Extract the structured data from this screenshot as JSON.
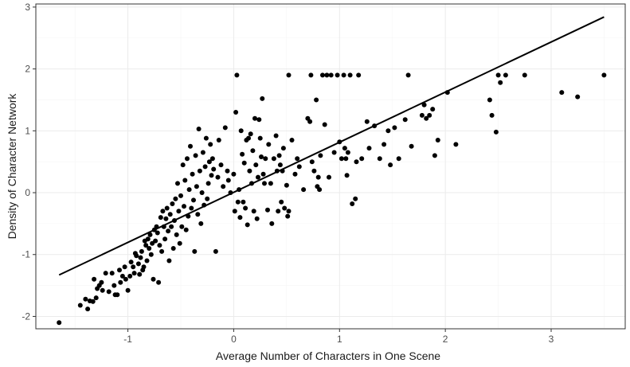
{
  "chart_data": {
    "type": "scatter",
    "title": "",
    "xlabel": "Average Number of Characters in One Scene",
    "ylabel": "Density of Character Network",
    "xlim": [
      -1.87,
      3.7
    ],
    "ylim": [
      -2.2,
      3.05
    ],
    "x_ticks": [
      -1,
      0,
      1,
      2,
      3
    ],
    "y_ticks": [
      -2,
      -1,
      0,
      1,
      2,
      3
    ],
    "grid": true,
    "legend": "none",
    "fit_line": {
      "x": [
        -1.65,
        3.5
      ],
      "y": [
        -1.33,
        2.84
      ]
    },
    "points": [
      [
        -1.65,
        -2.1
      ],
      [
        -1.45,
        -1.82
      ],
      [
        -1.4,
        -1.72
      ],
      [
        -1.38,
        -1.88
      ],
      [
        -1.36,
        -1.75
      ],
      [
        -1.33,
        -1.76
      ],
      [
        -1.32,
        -1.4
      ],
      [
        -1.3,
        -1.7
      ],
      [
        -1.29,
        -1.55
      ],
      [
        -1.27,
        -1.5
      ],
      [
        -1.25,
        -1.45
      ],
      [
        -1.24,
        -1.58
      ],
      [
        -1.21,
        -1.3
      ],
      [
        -1.18,
        -1.6
      ],
      [
        -1.15,
        -1.3
      ],
      [
        -1.13,
        -1.5
      ],
      [
        -1.12,
        -1.65
      ],
      [
        -1.1,
        -1.65
      ],
      [
        -1.08,
        -1.25
      ],
      [
        -1.07,
        -1.45
      ],
      [
        -1.05,
        -1.35
      ],
      [
        -1.03,
        -1.2
      ],
      [
        -1.02,
        -1.4
      ],
      [
        -1.0,
        -1.58
      ],
      [
        -0.98,
        -1.35
      ],
      [
        -0.97,
        -1.12
      ],
      [
        -0.95,
        -1.2
      ],
      [
        -0.94,
        -1.3
      ],
      [
        -0.93,
        -0.98
      ],
      [
        -0.92,
        -1.02
      ],
      [
        -0.9,
        -1.15
      ],
      [
        -0.89,
        -1.32
      ],
      [
        -0.88,
        -1.05
      ],
      [
        -0.87,
        -0.95
      ],
      [
        -0.86,
        -1.25
      ],
      [
        -0.85,
        -1.2
      ],
      [
        -0.84,
        -0.78
      ],
      [
        -0.83,
        -0.85
      ],
      [
        -0.82,
        -1.1
      ],
      [
        -0.81,
        -0.75
      ],
      [
        -0.8,
        -0.9
      ],
      [
        -0.79,
        -0.68
      ],
      [
        -0.78,
        -1.0
      ],
      [
        -0.77,
        -0.82
      ],
      [
        -0.76,
        -1.4
      ],
      [
        -0.75,
        -0.6
      ],
      [
        -0.74,
        -0.78
      ],
      [
        -0.73,
        -0.55
      ],
      [
        -0.72,
        -0.65
      ],
      [
        -0.71,
        -1.45
      ],
      [
        -0.7,
        -0.85
      ],
      [
        -0.69,
        -0.4
      ],
      [
        -0.68,
        -0.95
      ],
      [
        -0.67,
        -0.3
      ],
      [
        -0.66,
        -0.55
      ],
      [
        -0.65,
        -0.75
      ],
      [
        -0.64,
        -0.42
      ],
      [
        -0.63,
        -0.25
      ],
      [
        -0.62,
        -0.62
      ],
      [
        -0.61,
        -1.1
      ],
      [
        -0.6,
        -0.35
      ],
      [
        -0.59,
        -0.55
      ],
      [
        -0.58,
        -0.18
      ],
      [
        -0.57,
        -0.9
      ],
      [
        -0.56,
        -0.45
      ],
      [
        -0.55,
        -0.1
      ],
      [
        -0.54,
        -0.68
      ],
      [
        -0.53,
        0.15
      ],
      [
        -0.52,
        -0.3
      ],
      [
        -0.51,
        -0.82
      ],
      [
        -0.5,
        -0.05
      ],
      [
        -0.49,
        -0.55
      ],
      [
        -0.48,
        0.45
      ],
      [
        -0.47,
        -0.22
      ],
      [
        -0.46,
        0.2
      ],
      [
        -0.45,
        -0.6
      ],
      [
        -0.44,
        0.55
      ],
      [
        -0.43,
        -0.38
      ],
      [
        -0.42,
        0.05
      ],
      [
        -0.41,
        0.75
      ],
      [
        -0.4,
        -0.25
      ],
      [
        -0.39,
        0.3
      ],
      [
        -0.38,
        -0.12
      ],
      [
        -0.37,
        -0.95
      ],
      [
        -0.36,
        0.6
      ],
      [
        -0.35,
        0.1
      ],
      [
        -0.34,
        -0.35
      ],
      [
        -0.33,
        1.03
      ],
      [
        -0.32,
        0.35
      ],
      [
        -0.31,
        -0.5
      ],
      [
        -0.3,
        0.0
      ],
      [
        -0.29,
        0.65
      ],
      [
        -0.28,
        -0.2
      ],
      [
        -0.27,
        0.42
      ],
      [
        -0.26,
        0.88
      ],
      [
        -0.25,
        -0.1
      ],
      [
        -0.24,
        0.15
      ],
      [
        -0.23,
        0.5
      ],
      [
        -0.22,
        0.78
      ],
      [
        -0.21,
        0.28
      ],
      [
        -0.2,
        0.55
      ],
      [
        -0.19,
        0.38
      ],
      [
        -0.17,
        -0.95
      ],
      [
        -0.15,
        0.25
      ],
      [
        -0.14,
        0.85
      ],
      [
        -0.12,
        0.45
      ],
      [
        -0.1,
        0.1
      ],
      [
        -0.08,
        1.05
      ],
      [
        -0.06,
        0.35
      ],
      [
        -0.05,
        0.2
      ],
      [
        -0.03,
        0.0
      ],
      [
        0.0,
        0.3
      ],
      [
        0.01,
        -0.3
      ],
      [
        0.02,
        1.3
      ],
      [
        0.03,
        1.9
      ],
      [
        0.04,
        -0.15
      ],
      [
        0.05,
        0.05
      ],
      [
        0.06,
        -0.4
      ],
      [
        0.07,
        1.0
      ],
      [
        0.08,
        0.62
      ],
      [
        0.09,
        -0.15
      ],
      [
        0.1,
        0.48
      ],
      [
        0.11,
        -0.25
      ],
      [
        0.12,
        0.85
      ],
      [
        0.13,
        -0.52
      ],
      [
        0.14,
        0.88
      ],
      [
        0.15,
        0.35
      ],
      [
        0.16,
        0.95
      ],
      [
        0.17,
        0.15
      ],
      [
        0.18,
        0.68
      ],
      [
        0.19,
        -0.3
      ],
      [
        0.2,
        1.2
      ],
      [
        0.21,
        0.45
      ],
      [
        0.22,
        -0.42
      ],
      [
        0.23,
        0.25
      ],
      [
        0.24,
        1.18
      ],
      [
        0.25,
        0.88
      ],
      [
        0.26,
        0.58
      ],
      [
        0.27,
        1.52
      ],
      [
        0.28,
        0.3
      ],
      [
        0.29,
        0.15
      ],
      [
        0.3,
        0.55
      ],
      [
        0.32,
        -0.28
      ],
      [
        0.33,
        0.78
      ],
      [
        0.35,
        0.15
      ],
      [
        0.36,
        -0.5
      ],
      [
        0.38,
        0.55
      ],
      [
        0.4,
        0.92
      ],
      [
        0.41,
        0.35
      ],
      [
        0.42,
        -0.3
      ],
      [
        0.43,
        0.6
      ],
      [
        0.44,
        0.45
      ],
      [
        0.45,
        -0.15
      ],
      [
        0.46,
        0.35
      ],
      [
        0.47,
        0.72
      ],
      [
        0.48,
        -0.25
      ],
      [
        0.5,
        0.12
      ],
      [
        0.51,
        -0.38
      ],
      [
        0.52,
        -0.3
      ],
      [
        0.52,
        1.9
      ],
      [
        0.55,
        0.85
      ],
      [
        0.58,
        0.3
      ],
      [
        0.6,
        0.55
      ],
      [
        0.62,
        0.42
      ],
      [
        0.66,
        0.05
      ],
      [
        0.7,
        1.2
      ],
      [
        0.72,
        1.15
      ],
      [
        0.73,
        1.9
      ],
      [
        0.74,
        0.5
      ],
      [
        0.76,
        0.35
      ],
      [
        0.78,
        1.5
      ],
      [
        0.79,
        0.1
      ],
      [
        0.8,
        0.25
      ],
      [
        0.81,
        0.05
      ],
      [
        0.82,
        0.6
      ],
      [
        0.84,
        1.9
      ],
      [
        0.86,
        1.1
      ],
      [
        0.88,
        1.9
      ],
      [
        0.9,
        0.25
      ],
      [
        0.92,
        1.9
      ],
      [
        0.95,
        0.65
      ],
      [
        0.98,
        1.9
      ],
      [
        1.0,
        0.82
      ],
      [
        1.02,
        0.55
      ],
      [
        1.04,
        1.9
      ],
      [
        1.05,
        0.72
      ],
      [
        1.06,
        0.55
      ],
      [
        1.07,
        0.28
      ],
      [
        1.08,
        0.65
      ],
      [
        1.1,
        1.9
      ],
      [
        1.12,
        -0.18
      ],
      [
        1.15,
        -0.1
      ],
      [
        1.16,
        0.5
      ],
      [
        1.18,
        1.9
      ],
      [
        1.21,
        0.55
      ],
      [
        1.26,
        1.15
      ],
      [
        1.28,
        0.72
      ],
      [
        1.33,
        1.08
      ],
      [
        1.38,
        0.55
      ],
      [
        1.42,
        0.78
      ],
      [
        1.46,
        1.0
      ],
      [
        1.48,
        0.45
      ],
      [
        1.52,
        1.05
      ],
      [
        1.56,
        0.55
      ],
      [
        1.62,
        1.18
      ],
      [
        1.65,
        1.9
      ],
      [
        1.68,
        0.75
      ],
      [
        1.78,
        1.25
      ],
      [
        1.8,
        1.42
      ],
      [
        1.82,
        1.2
      ],
      [
        1.85,
        1.25
      ],
      [
        1.88,
        1.35
      ],
      [
        1.9,
        0.6
      ],
      [
        1.93,
        0.85
      ],
      [
        2.02,
        1.62
      ],
      [
        2.1,
        0.78
      ],
      [
        2.42,
        1.5
      ],
      [
        2.44,
        1.25
      ],
      [
        2.48,
        0.98
      ],
      [
        2.5,
        1.9
      ],
      [
        2.52,
        1.78
      ],
      [
        2.57,
        1.9
      ],
      [
        2.75,
        1.9
      ],
      [
        3.1,
        1.62
      ],
      [
        3.25,
        1.55
      ],
      [
        3.5,
        1.9
      ]
    ]
  }
}
